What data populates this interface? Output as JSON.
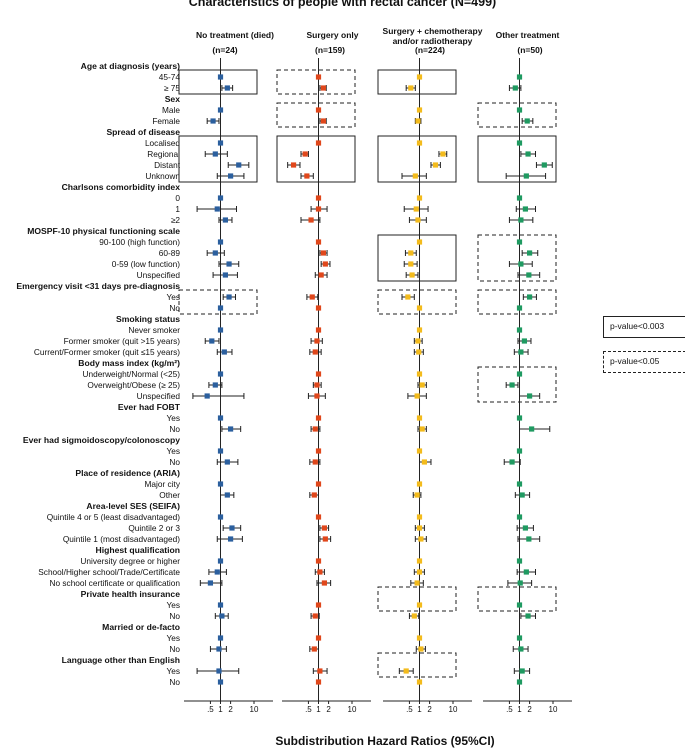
{
  "title": "Characteristics of people with rectal cancer (N=499)",
  "x_axis_label": "Subdistribution Hazard Ratios (95%CI)",
  "legend": {
    "solid": "p-value<0.003",
    "dashed": "p-value<0.05"
  },
  "colors": {
    "No treatment (died)": "#2b5f9e",
    "Surgery only": "#e0471b",
    "Surgery + chemotherapy and/or radiotherapy": "#f3bb1c",
    "Other treatment": "#1f9a61"
  },
  "chart_data": {
    "type": "forest",
    "x_scale": "log",
    "x_ticks": [
      {
        "value": 0.5,
        "label": ".5"
      },
      {
        "value": 1,
        "label": "1"
      },
      {
        "value": 2,
        "label": "2"
      },
      {
        "value": 10,
        "label": "10"
      }
    ],
    "reference_line": 1,
    "columns": [
      {
        "name": "No treatment (died)",
        "n": "(n=24)"
      },
      {
        "name": "Surgery only",
        "n": "(n=159)"
      },
      {
        "name": "Surgery + chemotherapy and/or radiotherapy",
        "n": "(n=224)"
      },
      {
        "name": "Other treatment",
        "n": "(n=50)"
      }
    ],
    "rows": [
      {
        "label": "Age at diagnosis (years)",
        "header": true
      },
      {
        "label": "45-74",
        "values": [
          [
            1,
            1,
            1
          ],
          [
            1,
            1,
            1
          ],
          [
            1,
            1,
            1
          ],
          [
            1,
            1,
            1
          ]
        ]
      },
      {
        "label": "≥ 75",
        "values": [
          [
            1.6,
            1.1,
            2.3
          ],
          [
            1.4,
            1.1,
            1.7
          ],
          [
            0.55,
            0.4,
            0.75
          ],
          [
            0.75,
            0.5,
            1.1
          ]
        ]
      },
      {
        "label": "Sex",
        "header": true
      },
      {
        "label": "Male",
        "values": [
          [
            1,
            1,
            1
          ],
          [
            1,
            1,
            1
          ],
          [
            1,
            1,
            1
          ],
          [
            1,
            1,
            1
          ]
        ]
      },
      {
        "label": "Female",
        "values": [
          [
            0.6,
            0.4,
            0.9
          ],
          [
            1.4,
            1.1,
            1.7
          ],
          [
            0.9,
            0.75,
            1.1
          ],
          [
            1.7,
            1.2,
            2.5
          ]
        ]
      },
      {
        "label": "Spread of disease",
        "header": true
      },
      {
        "label": "Localised",
        "values": [
          [
            1,
            1,
            1
          ],
          [
            1,
            1,
            1
          ],
          [
            1,
            1,
            1
          ],
          [
            1,
            1,
            1
          ]
        ]
      },
      {
        "label": "Regional",
        "values": [
          [
            0.7,
            0.35,
            1.6
          ],
          [
            0.4,
            0.3,
            0.5
          ],
          [
            5,
            3.8,
            6.5
          ],
          [
            1.8,
            1.1,
            3
          ]
        ]
      },
      {
        "label": "Distant",
        "values": [
          [
            3.5,
            1.7,
            7
          ],
          [
            0.18,
            0.12,
            0.28
          ],
          [
            3,
            2.2,
            4.2
          ],
          [
            5.5,
            3.2,
            9.5
          ]
        ]
      },
      {
        "label": "Unknown",
        "values": [
          [
            2,
            0.8,
            5
          ],
          [
            0.45,
            0.3,
            0.7
          ],
          [
            0.75,
            0.3,
            1.6
          ],
          [
            1.6,
            0.4,
            6
          ]
        ]
      },
      {
        "label": "Charlsons comorbidity index",
        "header": true
      },
      {
        "label": "0",
        "values": [
          [
            1,
            1,
            1
          ],
          [
            1,
            1,
            1
          ],
          [
            1,
            1,
            1
          ],
          [
            1,
            1,
            1
          ]
        ]
      },
      {
        "label": "1",
        "values": [
          [
            0.8,
            0.2,
            3
          ],
          [
            1,
            0.6,
            1.8
          ],
          [
            0.8,
            0.35,
            1.8
          ],
          [
            1.5,
            0.8,
            3
          ]
        ]
      },
      {
        "label": "≥2",
        "values": [
          [
            1.4,
            0.9,
            2.2
          ],
          [
            0.6,
            0.3,
            1.1
          ],
          [
            0.9,
            0.5,
            1.6
          ],
          [
            1.1,
            0.5,
            2.5
          ]
        ]
      },
      {
        "label": "MOSPF-10 physical functioning scale",
        "header": true
      },
      {
        "label": "90-100 (high function)",
        "values": [
          [
            1,
            1,
            1
          ],
          [
            1,
            1,
            1
          ],
          [
            1,
            1,
            1
          ],
          [
            1,
            1,
            1
          ]
        ]
      },
      {
        "label": "60-89",
        "values": [
          [
            0.7,
            0.4,
            1.3
          ],
          [
            1.4,
            1.1,
            1.8
          ],
          [
            0.55,
            0.38,
            0.8
          ],
          [
            2,
            1.2,
            3.5
          ]
        ]
      },
      {
        "label": "0-59 (low function)",
        "values": [
          [
            1.8,
            0.9,
            3.5
          ],
          [
            1.6,
            1.2,
            2.2
          ],
          [
            0.55,
            0.35,
            0.85
          ],
          [
            1.1,
            0.5,
            2.4
          ]
        ]
      },
      {
        "label": "Unspecified",
        "values": [
          [
            1.4,
            0.6,
            3.2
          ],
          [
            1.2,
            0.8,
            1.8
          ],
          [
            0.6,
            0.4,
            0.9
          ],
          [
            1.9,
            0.9,
            4
          ]
        ]
      },
      {
        "label": "Emergency visit <31 days pre-diagnosis",
        "header": true
      },
      {
        "label": "Yes",
        "values": [
          [
            1.8,
            1.2,
            2.8
          ],
          [
            0.65,
            0.45,
            0.95
          ],
          [
            0.45,
            0.3,
            0.7
          ],
          [
            2,
            1.3,
            3.2
          ]
        ]
      },
      {
        "label": "No",
        "values": [
          [
            1,
            1,
            1
          ],
          [
            1,
            1,
            1
          ],
          [
            1,
            1,
            1
          ],
          [
            1,
            1,
            1
          ]
        ]
      },
      {
        "label": "Smoking status",
        "header": true
      },
      {
        "label": "Never smoker",
        "values": [
          [
            1,
            1,
            1
          ],
          [
            1,
            1,
            1
          ],
          [
            1,
            1,
            1
          ],
          [
            1,
            1,
            1
          ]
        ]
      },
      {
        "label": "Former smoker (quit >15 years)",
        "values": [
          [
            0.55,
            0.35,
            0.9
          ],
          [
            0.9,
            0.6,
            1.3
          ],
          [
            0.9,
            0.7,
            1.2
          ],
          [
            1.4,
            0.9,
            2.2
          ]
        ]
      },
      {
        "label": "Current/Former smoker (quit ≤15 years)",
        "values": [
          [
            1.3,
            0.8,
            2.2
          ],
          [
            0.8,
            0.55,
            1.2
          ],
          [
            0.95,
            0.7,
            1.3
          ],
          [
            1.1,
            0.7,
            1.8
          ]
        ]
      },
      {
        "label": "Body mass index (kg/m²)",
        "header": true
      },
      {
        "label": "Underweight/Normal (<25)",
        "values": [
          [
            1,
            1,
            1
          ],
          [
            1,
            1,
            1
          ],
          [
            1,
            1,
            1
          ],
          [
            1,
            1,
            1
          ]
        ]
      },
      {
        "label": "Overweight/Obese (≥ 25)",
        "values": [
          [
            0.7,
            0.45,
            1.1
          ],
          [
            0.9,
            0.7,
            1.2
          ],
          [
            1.2,
            0.9,
            1.6
          ],
          [
            0.6,
            0.4,
            0.9
          ]
        ]
      },
      {
        "label": "Unspecified",
        "values": [
          [
            0.4,
            0.15,
            5
          ],
          [
            0.9,
            0.5,
            1.6
          ],
          [
            0.85,
            0.45,
            1.6
          ],
          [
            2,
            1,
            4
          ]
        ]
      },
      {
        "label": "Ever had FOBT",
        "header": true
      },
      {
        "label": "Yes",
        "values": [
          [
            1,
            1,
            1
          ],
          [
            1,
            1,
            1
          ],
          [
            1,
            1,
            1
          ],
          [
            1,
            1,
            1
          ]
        ]
      },
      {
        "label": "No",
        "values": [
          [
            2,
            1.1,
            4
          ],
          [
            0.8,
            0.6,
            1.1
          ],
          [
            1.2,
            0.9,
            1.6
          ],
          [
            2.3,
            1,
            8
          ]
        ]
      },
      {
        "label": "Ever had sigmoidoscopy/colonoscopy",
        "header": true
      },
      {
        "label": "Yes",
        "values": [
          [
            1,
            1,
            1
          ],
          [
            1,
            1,
            1
          ],
          [
            1,
            1,
            1
          ],
          [
            1,
            1,
            1
          ]
        ]
      },
      {
        "label": "No",
        "values": [
          [
            1.6,
            0.8,
            3.3
          ],
          [
            0.8,
            0.55,
            1.1
          ],
          [
            1.4,
            1,
            2.2
          ],
          [
            0.6,
            0.35,
            1.05
          ]
        ]
      },
      {
        "label": "Place of residence (ARIA)",
        "header": true
      },
      {
        "label": "Major city",
        "values": [
          [
            1,
            1,
            1
          ],
          [
            1,
            1,
            1
          ],
          [
            1,
            1,
            1
          ],
          [
            1,
            1,
            1
          ]
        ]
      },
      {
        "label": "Other",
        "values": [
          [
            1.6,
            1,
            2.5
          ],
          [
            0.75,
            0.55,
            1
          ],
          [
            0.85,
            0.65,
            1.1
          ],
          [
            1.2,
            0.75,
            2
          ]
        ]
      },
      {
        "label": "Area-level SES (SEIFA)",
        "header": true
      },
      {
        "label": "Quintile 4 or 5 (least disadvantaged)",
        "values": [
          [
            1,
            1,
            1
          ],
          [
            1,
            1,
            1
          ],
          [
            1,
            1,
            1
          ],
          [
            1,
            1,
            1
          ]
        ]
      },
      {
        "label": "Quintile 2 or 3",
        "values": [
          [
            2.2,
            1.2,
            4
          ],
          [
            1.5,
            1.1,
            2
          ],
          [
            1,
            0.75,
            1.4
          ],
          [
            1.5,
            0.85,
            2.6
          ]
        ]
      },
      {
        "label": "Quintile 1 (most disadvantaged)",
        "values": [
          [
            2,
            0.8,
            4.5
          ],
          [
            1.6,
            1.1,
            2.3
          ],
          [
            1.1,
            0.75,
            1.6
          ],
          [
            1.9,
            0.9,
            4
          ]
        ]
      },
      {
        "label": "Highest qualification",
        "header": true
      },
      {
        "label": "University degree or higher",
        "values": [
          [
            1,
            1,
            1
          ],
          [
            1,
            1,
            1
          ],
          [
            1,
            1,
            1
          ],
          [
            1,
            1,
            1
          ]
        ]
      },
      {
        "label": "School/Higher school/Trade/Certificate",
        "values": [
          [
            0.8,
            0.45,
            1.5
          ],
          [
            1.1,
            0.8,
            1.5
          ],
          [
            1,
            0.7,
            1.4
          ],
          [
            1.6,
            0.85,
            3
          ]
        ]
      },
      {
        "label": "No school certificate or qualification",
        "values": [
          [
            0.5,
            0.25,
            1.1
          ],
          [
            1.5,
            0.9,
            2.3
          ],
          [
            0.85,
            0.55,
            1.3
          ],
          [
            1.05,
            0.45,
            2.3
          ]
        ]
      },
      {
        "label": "Private health insurance",
        "header": true
      },
      {
        "label": "Yes",
        "values": [
          [
            1,
            1,
            1
          ],
          [
            1,
            1,
            1
          ],
          [
            1,
            1,
            1
          ],
          [
            1,
            1,
            1
          ]
        ]
      },
      {
        "label": "No",
        "values": [
          [
            1.1,
            0.7,
            1.7
          ],
          [
            0.8,
            0.6,
            1.05
          ],
          [
            0.7,
            0.5,
            0.95
          ],
          [
            1.8,
            1.1,
            3
          ]
        ]
      },
      {
        "label": "Married or de-facto",
        "header": true
      },
      {
        "label": "Yes",
        "values": [
          [
            1,
            1,
            1
          ],
          [
            1,
            1,
            1
          ],
          [
            1,
            1,
            1
          ],
          [
            1,
            1,
            1
          ]
        ]
      },
      {
        "label": "No",
        "values": [
          [
            0.9,
            0.5,
            1.5
          ],
          [
            0.75,
            0.55,
            1
          ],
          [
            1.1,
            0.8,
            1.5
          ],
          [
            1.1,
            0.65,
            1.8
          ]
        ]
      },
      {
        "label": "Language other than English",
        "header": true
      },
      {
        "label": "Yes",
        "values": [
          [
            0.9,
            0.2,
            3.5
          ],
          [
            1.1,
            0.7,
            1.8
          ],
          [
            0.4,
            0.25,
            0.65
          ],
          [
            1.2,
            0.7,
            2
          ]
        ]
      },
      {
        "label": "No",
        "values": [
          [
            1,
            1,
            1
          ],
          [
            1,
            1,
            1
          ],
          [
            1,
            1,
            1
          ],
          [
            1,
            1,
            1
          ]
        ]
      }
    ],
    "significance_boxes": [
      {
        "column": 0,
        "rows": "45-74 to ≥ 75",
        "style": "solid"
      },
      {
        "column": 0,
        "rows": "Localised to Unknown",
        "style": "solid"
      },
      {
        "column": 0,
        "rows": "Emergency visit Yes to No",
        "style": "dashed"
      },
      {
        "column": 1,
        "rows": "45-74 to ≥ 75",
        "style": "dashed"
      },
      {
        "column": 1,
        "rows": "Male to Female",
        "style": "dashed"
      },
      {
        "column": 1,
        "rows": "Localised to Unknown",
        "style": "solid"
      },
      {
        "column": 2,
        "rows": "45-74 to ≥ 75",
        "style": "solid"
      },
      {
        "column": 2,
        "rows": "Localised to Unknown",
        "style": "solid"
      },
      {
        "column": 2,
        "rows": "90-100 to Unspecified",
        "style": "solid"
      },
      {
        "column": 2,
        "rows": "Emergency visit Yes to No",
        "style": "dashed"
      },
      {
        "column": 2,
        "rows": "Private health insurance Yes to No",
        "style": "dashed"
      },
      {
        "column": 2,
        "rows": "Language other than English Yes to No",
        "style": "dashed"
      },
      {
        "column": 3,
        "rows": "Male to Female",
        "style": "dashed"
      },
      {
        "column": 3,
        "rows": "Localised to Unknown",
        "style": "solid"
      },
      {
        "column": 3,
        "rows": "90-100 to Unspecified",
        "style": "dashed"
      },
      {
        "column": 3,
        "rows": "Emergency visit Yes to No",
        "style": "dashed"
      },
      {
        "column": 3,
        "rows": "BMI Underweight to Unspecified",
        "style": "dashed"
      },
      {
        "column": 3,
        "rows": "Private health insurance Yes to No",
        "style": "dashed"
      }
    ]
  }
}
